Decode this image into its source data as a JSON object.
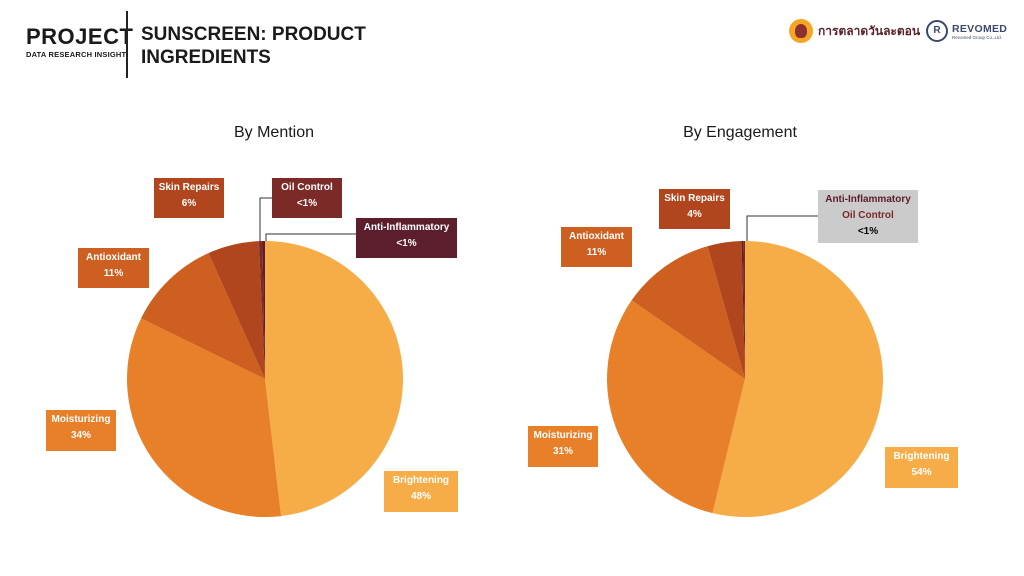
{
  "header": {
    "brand_title": "PROJECT",
    "brand_subtitle": "DATA RESEARCH INSIGHT",
    "page_title_line1": "SUNSCREEN: PRODUCT",
    "page_title_line2": "INGREDIENTS",
    "logo1_text": "การตลาดวันละตอน",
    "logo2_text": "REVOMED",
    "logo2_subtext": "Revomed Group Co.,Ltd.",
    "logo2_mark": "R"
  },
  "colors": {
    "brightening": "#f6ad48",
    "moisturizing": "#e8802a",
    "antioxidant": "#cd5f21",
    "skin_repairs": "#b0451e",
    "oil_control": "#7b2a28",
    "anti_inflammatory": "#5c1e2c",
    "grey_box": "#cbcbcb"
  },
  "chart_data": [
    {
      "type": "pie",
      "title": "By Mention",
      "slices": [
        {
          "name": "Brightening",
          "value": 48,
          "label": "48%",
          "color": "#f6ad48"
        },
        {
          "name": "Moisturizing",
          "value": 34,
          "label": "34%",
          "color": "#e8802a"
        },
        {
          "name": "Antioxidant",
          "value": 11,
          "label": "11%",
          "color": "#cd5f21"
        },
        {
          "name": "Skin Repairs",
          "value": 6,
          "label": "6%",
          "color": "#b0451e"
        },
        {
          "name": "Oil Control",
          "value": 0.4,
          "label": "<1%",
          "color": "#7b2a28"
        },
        {
          "name": "Anti-Inflammatory",
          "value": 0.3,
          "label": "<1%",
          "color": "#5c1e2c"
        }
      ]
    },
    {
      "type": "pie",
      "title": "By Engagement",
      "slices": [
        {
          "name": "Brightening",
          "value": 54,
          "label": "54%",
          "color": "#f6ad48"
        },
        {
          "name": "Moisturizing",
          "value": 31,
          "label": "31%",
          "color": "#e8802a"
        },
        {
          "name": "Antioxidant",
          "value": 11,
          "label": "11%",
          "color": "#cd5f21"
        },
        {
          "name": "Skin Repairs",
          "value": 4,
          "label": "4%",
          "color": "#b0451e"
        },
        {
          "name": "Anti-Inflammatory",
          "value": 0.2,
          "label": "<1%",
          "color": "#5c1e2c"
        },
        {
          "name": "Oil Control",
          "value": 0.2,
          "label": "<1%",
          "color": "#7b2a28"
        }
      ],
      "combined_label": {
        "names": [
          "Anti-Inflammatory",
          "Oil Control"
        ],
        "value_label": "<1%"
      }
    }
  ]
}
